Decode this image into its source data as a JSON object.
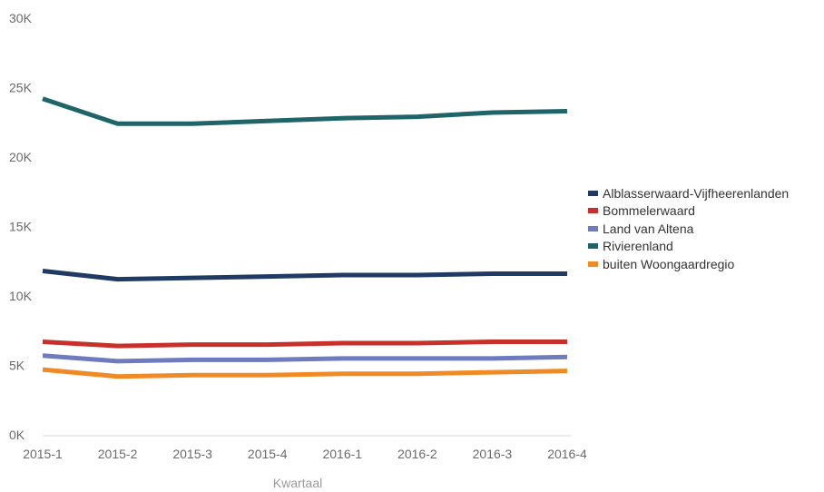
{
  "chart_data": {
    "type": "line",
    "title": "",
    "xlabel": "Kwartaal",
    "ylabel": "",
    "categories": [
      "2015-1",
      "2015-2",
      "2015-3",
      "2015-4",
      "2016-1",
      "2016-2",
      "2016-3",
      "2016-4"
    ],
    "ylim": [
      0,
      30000
    ],
    "yticks": [
      {
        "value": 0,
        "label": "0K"
      },
      {
        "value": 5000,
        "label": "5K"
      },
      {
        "value": 10000,
        "label": "10K"
      },
      {
        "value": 15000,
        "label": "15K"
      },
      {
        "value": 20000,
        "label": "20K"
      },
      {
        "value": 25000,
        "label": "25K"
      },
      {
        "value": 30000,
        "label": "30K"
      }
    ],
    "grid": false,
    "legend_position": "right",
    "series": [
      {
        "name": "Alblasserwaard-Vijfheerenlanden",
        "color": "#1f3a63",
        "values": [
          11800,
          11200,
          11300,
          11400,
          11500,
          11500,
          11600,
          11600
        ]
      },
      {
        "name": "Bommelerwaard",
        "color": "#c8312b",
        "values": [
          6700,
          6400,
          6500,
          6500,
          6600,
          6600,
          6700,
          6700
        ]
      },
      {
        "name": "Land van Altena",
        "color": "#6f7bbf",
        "values": [
          5700,
          5300,
          5400,
          5400,
          5500,
          5500,
          5500,
          5600
        ]
      },
      {
        "name": "Rivierenland",
        "color": "#1f6469",
        "values": [
          24200,
          22400,
          22400,
          22600,
          22800,
          22900,
          23200,
          23300
        ]
      },
      {
        "name": "buiten Woongaardregio",
        "color": "#f08a24",
        "values": [
          4700,
          4200,
          4300,
          4300,
          4400,
          4400,
          4500,
          4600
        ]
      }
    ]
  }
}
